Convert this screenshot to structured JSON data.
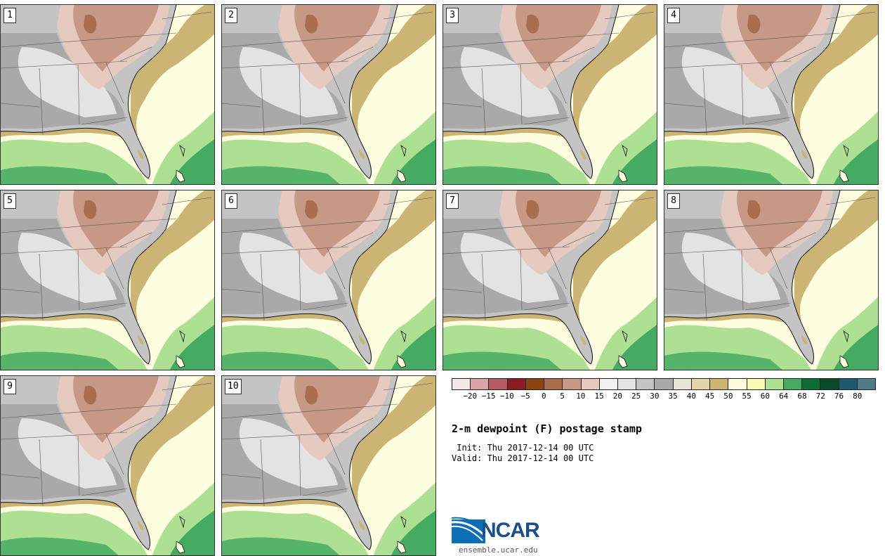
{
  "panels": [
    {
      "label": "1"
    },
    {
      "label": "2"
    },
    {
      "label": "3"
    },
    {
      "label": "4"
    },
    {
      "label": "5"
    },
    {
      "label": "6"
    },
    {
      "label": "7"
    },
    {
      "label": "8"
    },
    {
      "label": "9"
    },
    {
      "label": "10"
    }
  ],
  "colorbar": {
    "colors": [
      "#f5e6e8",
      "#d9a3a8",
      "#b55a61",
      "#8a1d24",
      "#8a4513",
      "#a86e4e",
      "#c79886",
      "#e6c9bf",
      "#f2f2f2",
      "#e3e3e3",
      "#c4c4c4",
      "#a9a9a9",
      "#e8e6d6",
      "#e3d4a9",
      "#ccb475",
      "#fdfde0",
      "#f7fbb6",
      "#ade092",
      "#45ab62",
      "#0c6e36",
      "#0a4a2c",
      "#1e5a6b",
      "#4f7c87"
    ],
    "ticks": [
      "−20",
      "−15",
      "−10",
      "−5",
      "0",
      "5",
      "10",
      "15",
      "20",
      "25",
      "30",
      "35",
      "40",
      "45",
      "50",
      "55",
      "60",
      "64",
      "68",
      "72",
      "76",
      "80"
    ]
  },
  "title": "2-m dewpoint (F) postage stamp",
  "init": " Init: Thu 2017-12-14 00 UTC",
  "valid": "Valid: Thu 2017-12-14 00 UTC",
  "logo": {
    "name": "NCAR",
    "url": "ensemble.ucar.edu",
    "accent": "#1a4f8a"
  }
}
